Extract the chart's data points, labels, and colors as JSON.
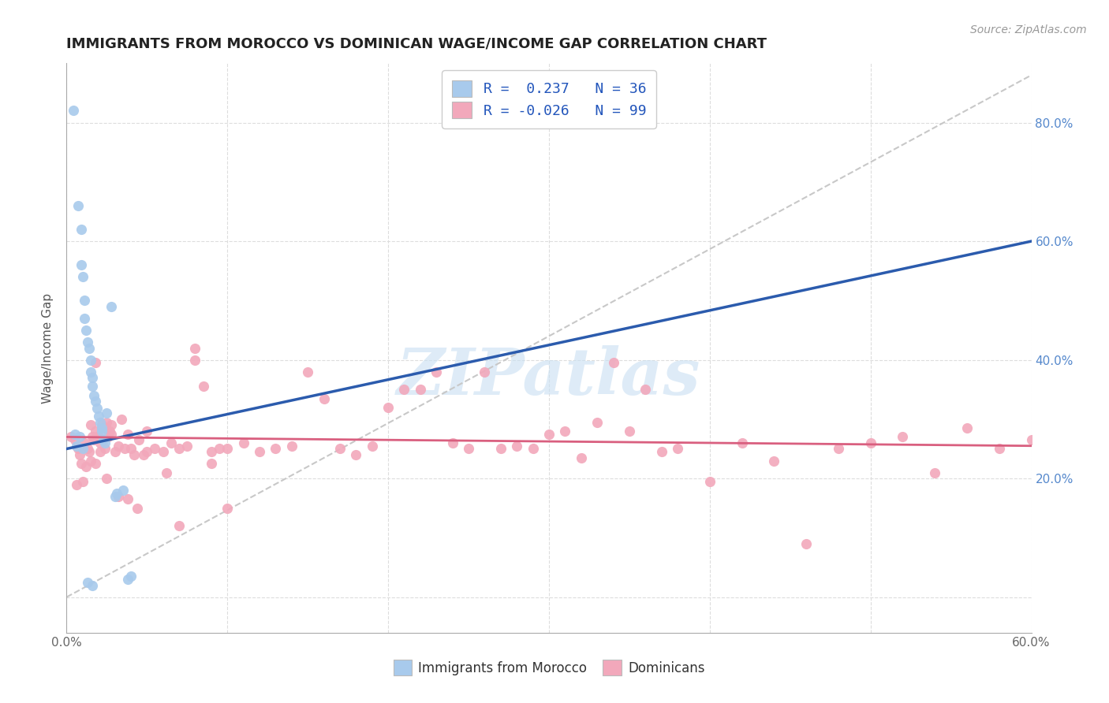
{
  "title": "IMMIGRANTS FROM MOROCCO VS DOMINICAN WAGE/INCOME GAP CORRELATION CHART",
  "source": "Source: ZipAtlas.com",
  "ylabel": "Wage/Income Gap",
  "xlim": [
    0.0,
    0.6
  ],
  "ylim": [
    -0.06,
    0.9
  ],
  "yticks": [
    0.0,
    0.2,
    0.4,
    0.6,
    0.8
  ],
  "ytick_labels_right": [
    "",
    "20.0%",
    "40.0%",
    "60.0%",
    "80.0%"
  ],
  "xticks": [
    0.0,
    0.1,
    0.2,
    0.3,
    0.4,
    0.5,
    0.6
  ],
  "xtick_labels": [
    "0.0%",
    "",
    "",
    "",
    "",
    "",
    "60.0%"
  ],
  "legend_R_blue": "0.237",
  "legend_N_blue": "36",
  "legend_R_pink": "-0.026",
  "legend_N_pink": "99",
  "color_blue": "#A8CAEC",
  "color_pink": "#F2A8BB",
  "color_blue_line": "#2B5BAD",
  "color_pink_line": "#D95F7F",
  "color_diag": "#C8C8C8",
  "background_color": "#FFFFFF",
  "morocco_x": [
    0.004,
    0.007,
    0.009,
    0.009,
    0.01,
    0.011,
    0.011,
    0.012,
    0.013,
    0.014,
    0.015,
    0.015,
    0.016,
    0.016,
    0.017,
    0.018,
    0.019,
    0.02,
    0.021,
    0.022,
    0.022,
    0.023,
    0.024,
    0.025,
    0.028,
    0.03,
    0.031,
    0.035,
    0.038,
    0.04,
    0.005,
    0.006,
    0.008,
    0.01,
    0.013,
    0.016
  ],
  "morocco_y": [
    0.82,
    0.66,
    0.62,
    0.56,
    0.54,
    0.5,
    0.47,
    0.45,
    0.43,
    0.42,
    0.4,
    0.38,
    0.37,
    0.355,
    0.34,
    0.33,
    0.318,
    0.305,
    0.295,
    0.285,
    0.28,
    0.265,
    0.26,
    0.31,
    0.49,
    0.17,
    0.175,
    0.18,
    0.03,
    0.035,
    0.275,
    0.255,
    0.27,
    0.25,
    0.025,
    0.02
  ],
  "dominican_x": [
    0.003,
    0.005,
    0.006,
    0.007,
    0.008,
    0.009,
    0.01,
    0.011,
    0.012,
    0.013,
    0.014,
    0.015,
    0.015,
    0.016,
    0.017,
    0.018,
    0.018,
    0.019,
    0.02,
    0.021,
    0.022,
    0.023,
    0.024,
    0.025,
    0.026,
    0.027,
    0.028,
    0.03,
    0.032,
    0.034,
    0.036,
    0.038,
    0.04,
    0.042,
    0.045,
    0.048,
    0.05,
    0.055,
    0.06,
    0.065,
    0.07,
    0.075,
    0.08,
    0.085,
    0.09,
    0.095,
    0.1,
    0.11,
    0.12,
    0.13,
    0.14,
    0.15,
    0.16,
    0.17,
    0.18,
    0.19,
    0.2,
    0.21,
    0.22,
    0.23,
    0.24,
    0.25,
    0.26,
    0.27,
    0.28,
    0.29,
    0.3,
    0.31,
    0.32,
    0.33,
    0.34,
    0.35,
    0.36,
    0.37,
    0.38,
    0.4,
    0.42,
    0.44,
    0.46,
    0.48,
    0.5,
    0.52,
    0.54,
    0.56,
    0.58,
    0.6,
    0.018,
    0.021,
    0.025,
    0.028,
    0.032,
    0.038,
    0.044,
    0.05,
    0.062,
    0.07,
    0.08,
    0.09,
    0.1
  ],
  "dominican_y": [
    0.27,
    0.265,
    0.19,
    0.25,
    0.24,
    0.225,
    0.195,
    0.26,
    0.22,
    0.25,
    0.245,
    0.23,
    0.29,
    0.27,
    0.265,
    0.28,
    0.225,
    0.27,
    0.27,
    0.26,
    0.29,
    0.285,
    0.25,
    0.295,
    0.27,
    0.28,
    0.29,
    0.245,
    0.255,
    0.3,
    0.25,
    0.275,
    0.25,
    0.24,
    0.265,
    0.24,
    0.245,
    0.25,
    0.245,
    0.26,
    0.25,
    0.255,
    0.4,
    0.355,
    0.245,
    0.25,
    0.25,
    0.26,
    0.245,
    0.25,
    0.255,
    0.38,
    0.335,
    0.25,
    0.24,
    0.255,
    0.32,
    0.35,
    0.35,
    0.38,
    0.26,
    0.25,
    0.38,
    0.25,
    0.255,
    0.25,
    0.275,
    0.28,
    0.235,
    0.295,
    0.395,
    0.28,
    0.35,
    0.245,
    0.25,
    0.195,
    0.26,
    0.23,
    0.09,
    0.25,
    0.26,
    0.27,
    0.21,
    0.285,
    0.25,
    0.265,
    0.395,
    0.245,
    0.2,
    0.275,
    0.17,
    0.165,
    0.15,
    0.28,
    0.21,
    0.12,
    0.42,
    0.225,
    0.15
  ],
  "blue_line_x": [
    0.0,
    0.6
  ],
  "blue_line_y": [
    0.25,
    0.6
  ],
  "pink_line_x": [
    0.0,
    0.6
  ],
  "pink_line_y": [
    0.27,
    0.255
  ],
  "diag_line_x": [
    0.0,
    0.6
  ],
  "diag_line_y": [
    0.0,
    0.88
  ],
  "watermark_text": "ZIPatlas",
  "watermark_color": "#C8DFF2",
  "title_fontsize": 13,
  "axis_label_fontsize": 11,
  "tick_fontsize": 11,
  "legend_fontsize": 13,
  "right_tick_color": "#5588CC"
}
